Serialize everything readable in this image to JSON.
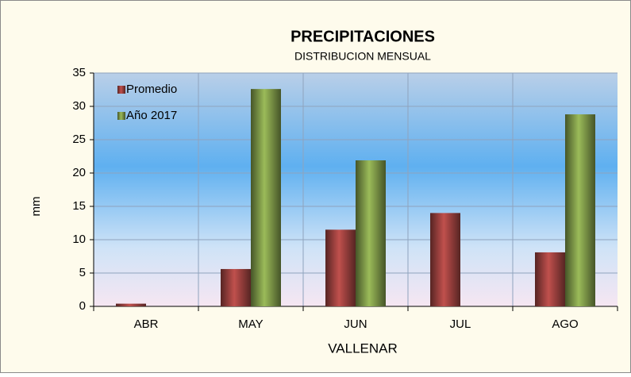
{
  "chart_data": {
    "type": "bar",
    "title": "PRECIPITACIONES",
    "subtitle": "DISTRIBUCION MENSUAL",
    "x_label": "VALLENAR",
    "y_label": "mm",
    "categories": [
      "ABR",
      "MAY",
      "JUN",
      "JUL",
      "AGO"
    ],
    "series": [
      {
        "name": "Promedio",
        "color": "#c0504d",
        "values": [
          0.4,
          5.6,
          11.5,
          14.0,
          8.1
        ]
      },
      {
        "name": "Año 2017",
        "color": "#9bbb59",
        "values": [
          0,
          32.6,
          21.9,
          0,
          28.8
        ]
      }
    ],
    "ylim": [
      0,
      35
    ],
    "yticks": [
      0,
      5,
      10,
      15,
      20,
      25,
      30,
      35
    ],
    "grid": true,
    "legend": "top-left"
  }
}
